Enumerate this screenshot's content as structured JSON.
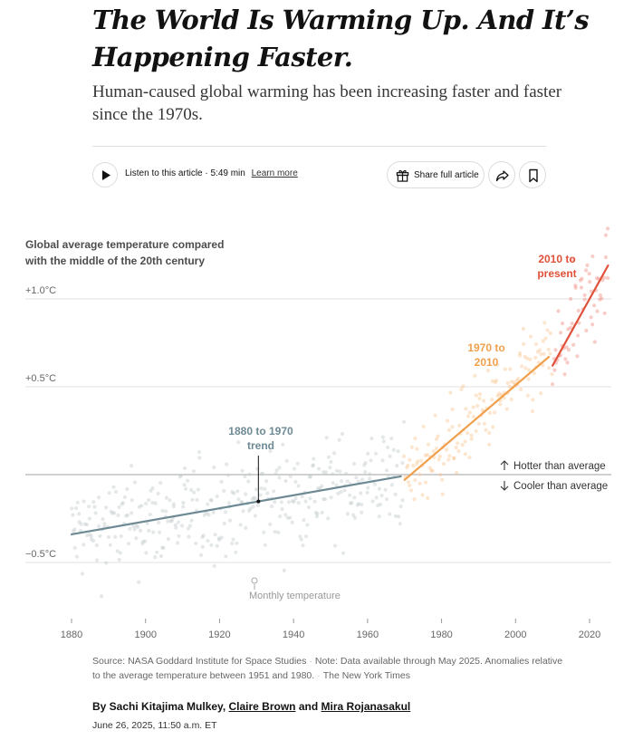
{
  "header": {
    "headline_line1": "The World Is Warming Up. And It’s",
    "headline_line2": "Happening Faster.",
    "summary": "Human-caused global warming has been increasing faster and faster since the 1970s."
  },
  "toolbar": {
    "listen_label": "Listen to this article · 5:49 min",
    "learn_more": "Learn more",
    "share_label": "Share full article",
    "play_icon": "play-icon",
    "gift_icon": "gift-icon",
    "forward_icon": "share-arrow-icon",
    "bookmark_icon": "bookmark-icon"
  },
  "chart_data": {
    "type": "scatter",
    "title_line1": "Global average temperature compared",
    "title_line2": "with the middle of the 20th century",
    "x_ticks": [
      1880,
      1900,
      1920,
      1940,
      1960,
      1980,
      2000,
      2020
    ],
    "y_ticks": [
      {
        "value": 1.0,
        "label": "+1.0°C"
      },
      {
        "value": 0.5,
        "label": "+0.5°C"
      },
      {
        "value": -0.5,
        "label": "−0.5°C"
      }
    ],
    "xlim": [
      1875,
      2026
    ],
    "ylim": [
      -0.85,
      1.45
    ],
    "baseline": 0,
    "hotter_label": "Hotter than average",
    "cooler_label": "Cooler than average",
    "monthly_label": "Monthly temperature",
    "trends": [
      {
        "label_line1": "1880 to 1970",
        "label_line2": "trend",
        "color": "#6e8a94",
        "x": [
          1880,
          1969
        ],
        "y": [
          -0.34,
          -0.01
        ]
      },
      {
        "label_line1": "1970 to",
        "label_line2": "2010",
        "color": "#f0a04c",
        "x": [
          1970,
          2009
        ],
        "y": [
          -0.03,
          0.67
        ]
      },
      {
        "label_line1": "2010 to",
        "label_line2": "present",
        "color": "#e0513a",
        "x": [
          2010,
          2025
        ],
        "y": [
          0.62,
          1.19
        ]
      }
    ],
    "scatter_colors": {
      "early": "#c4ccce",
      "mid": "#f7c48d",
      "late": "#ef8f82"
    }
  },
  "source": {
    "source_text": "Source: NASA Goddard Institute for Space Studies",
    "note_text": "Note: Data available through May 2025. Anomalies relative to the average temperature between 1951 and 1980.",
    "credit": "The New York Times"
  },
  "byline": {
    "prefix": "By Sachi Kitajima Mulkey, ",
    "author2": "Claire Brown",
    "and": " and ",
    "author3": "Mira Rojanasakul",
    "date": "June 26, 2025, 11:50 a.m. ET"
  }
}
